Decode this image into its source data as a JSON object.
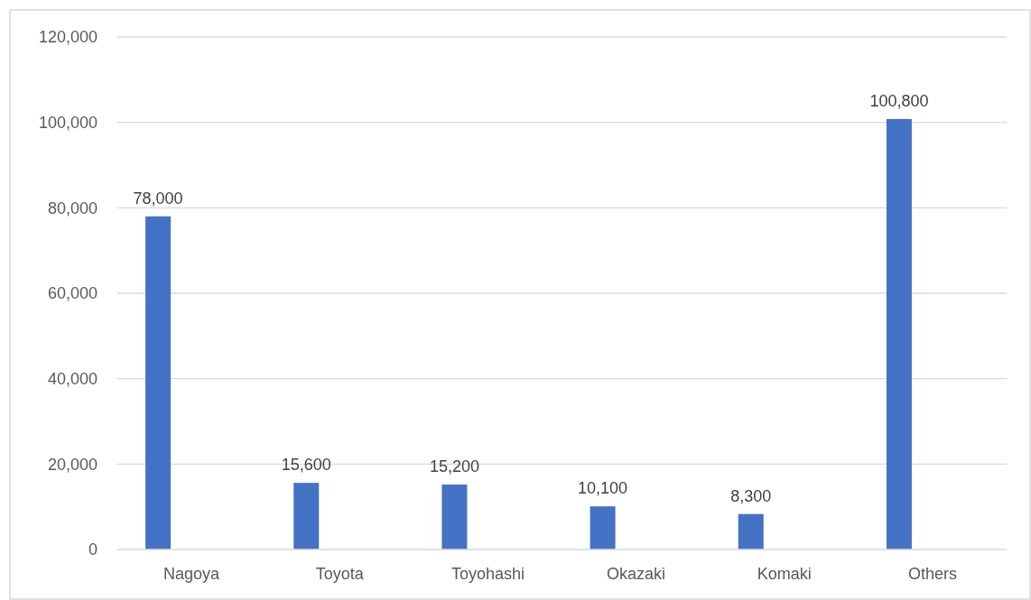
{
  "chart_data": {
    "type": "bar",
    "categories": [
      "Nagoya",
      "Toyota",
      "Toyohashi",
      "Okazaki",
      "Komaki",
      "Others"
    ],
    "values": [
      78000,
      15600,
      15200,
      10100,
      8300,
      100800
    ],
    "color": "#4472c4",
    "ylim": [
      0,
      120000
    ],
    "yticks": [
      {
        "value": 0,
        "label": "0"
      },
      {
        "value": 20000,
        "label": "20,000"
      },
      {
        "value": 40000,
        "label": "40,000"
      },
      {
        "value": 60000,
        "label": "60,000"
      },
      {
        "value": 80000,
        "label": "80,000"
      },
      {
        "value": 100000,
        "label": "100,000"
      },
      {
        "value": 120000,
        "label": "120,000"
      }
    ],
    "value_labels": [
      "78,000",
      "15,600",
      "15,200",
      "10,100",
      "8,300",
      "100,800"
    ],
    "grid": "y"
  }
}
